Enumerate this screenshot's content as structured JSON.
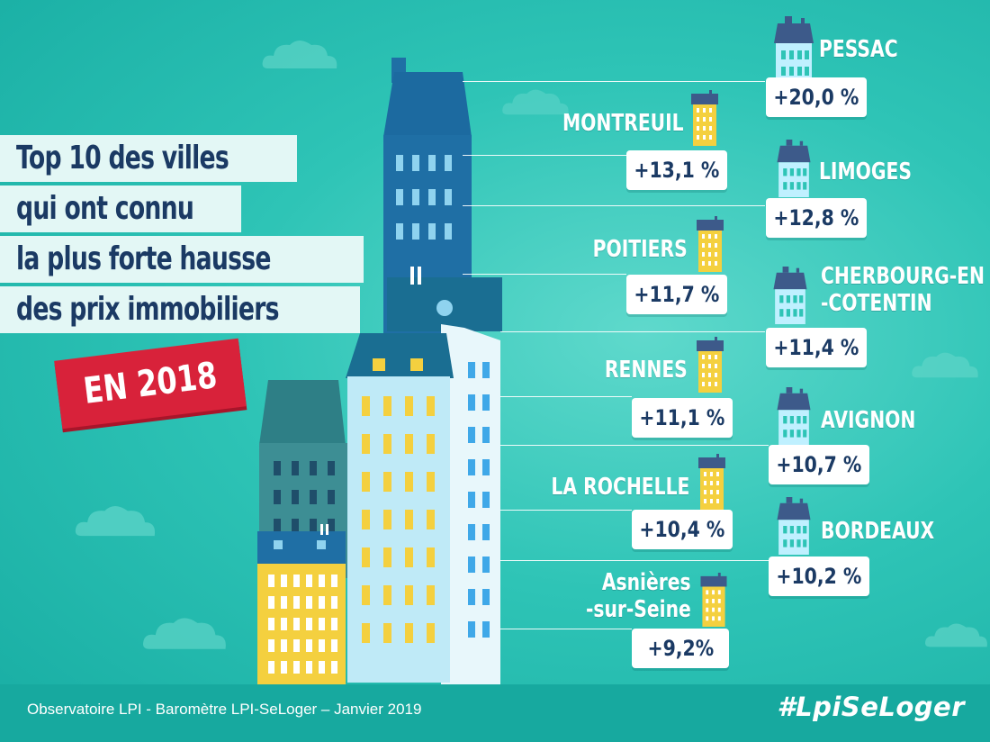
{
  "title_lines": [
    "Top 10 des villes",
    "qui ont connu",
    "la plus forte hausse",
    "des prix immobiliers"
  ],
  "year_badge": "EN 2018",
  "cities": [
    {
      "name": "PESSAC",
      "change": "+20,0 %"
    },
    {
      "name": "MONTREUIL",
      "change": "+13,1 %"
    },
    {
      "name": "LIMOGES",
      "change": "+12,8 %"
    },
    {
      "name": "POITIERS",
      "change": "+11,7 %"
    },
    {
      "name_line1": "CHERBOURG-EN",
      "name_line2": "-COTENTIN",
      "change": "+11,4 %"
    },
    {
      "name": "RENNES",
      "change": "+11,1 %"
    },
    {
      "name": "AVIGNON",
      "change": "+10,7 %"
    },
    {
      "name": "LA ROCHELLE",
      "change": "+10,4 %"
    },
    {
      "name": "BORDEAUX",
      "change": "+10,2 %"
    },
    {
      "name_line1": "Asnières",
      "name_line2": "-sur-Seine",
      "change": "+9,2%"
    }
  ],
  "footer": {
    "source": "Observatoire LPI - Baromètre LPI-SeLoger – Janvier 2019",
    "hashtag": "#LpiSeLoger"
  },
  "colors": {
    "background": "#2ec4b6",
    "navy_text": "#1b3a64",
    "badge_red": "#d8223a",
    "tower_blue": "#1f6fa5",
    "house_slate": "#3d5a8a",
    "yellow": "#f4d03f"
  }
}
